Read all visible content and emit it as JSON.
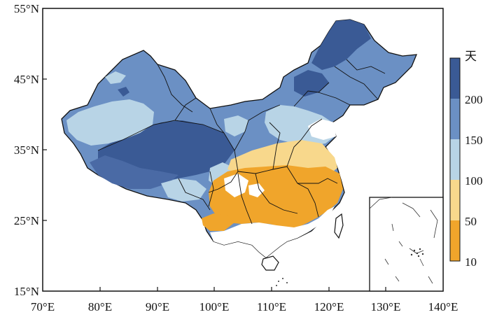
{
  "map": {
    "lon_ticks": [
      "70°E",
      "80°E",
      "90°E",
      "100°E",
      "110°E",
      "120°E",
      "130°E",
      "140°E"
    ],
    "lat_ticks": [
      "55°N",
      "45°N",
      "35°N",
      "25°N",
      "15°N"
    ],
    "lon_range": [
      70,
      140
    ],
    "lat_range": [
      15,
      55
    ]
  },
  "legend": {
    "unit": "天",
    "tick_labels": [
      "200",
      "150",
      "100",
      "50",
      "10"
    ],
    "bins": [
      {
        "range": [
          200,
          250
        ],
        "color": "#3a5a95"
      },
      {
        "range": [
          150,
          200
        ],
        "color": "#6b90c4"
      },
      {
        "range": [
          100,
          150
        ],
        "color": "#b8d4e6"
      },
      {
        "range": [
          50,
          100
        ],
        "color": "#f8d88c"
      },
      {
        "range": [
          10,
          50
        ],
        "color": "#f0a52b"
      }
    ]
  },
  "colors": {
    "dark_blue": "#3a5a95",
    "mid_blue": "#6b90c4",
    "light_blue": "#b8d4e6",
    "light_yellow": "#f8d88c",
    "orange": "#f0a52b",
    "border": "#111111"
  }
}
